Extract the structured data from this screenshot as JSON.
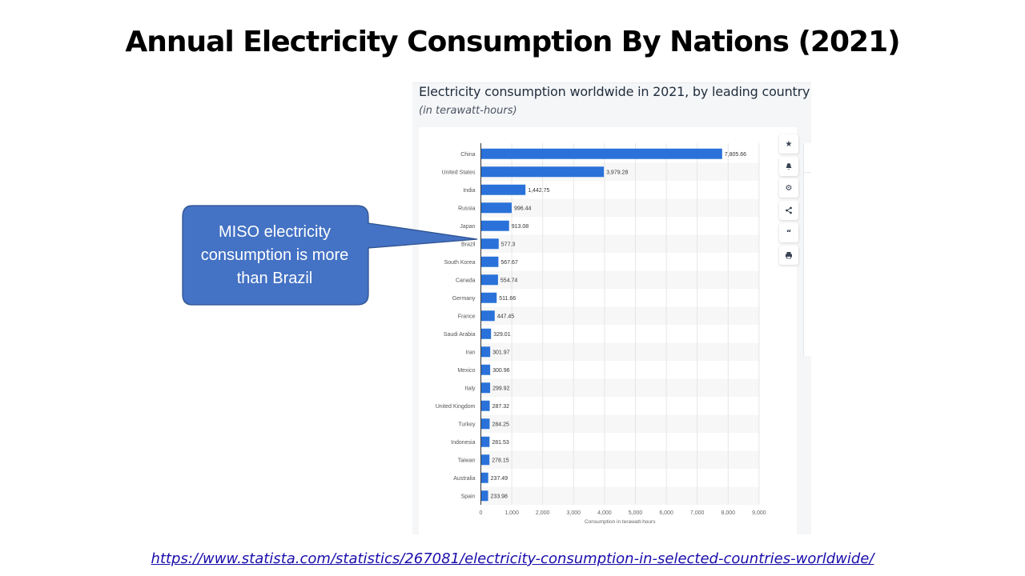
{
  "slide": {
    "title": "Annual Electricity Consumption By Nations (2021)",
    "source_link": "https://www.statista.com/statistics/267081/electricity-consumption-in-selected-countries-worldwide/"
  },
  "callout": {
    "text": "MISO electricity consumption is more than Brazil",
    "fill_color": "#4472c4",
    "border_color": "#2f528f"
  },
  "toolbar": {
    "buttons": [
      "star-icon",
      "bell-icon",
      "gear-icon",
      "share-icon",
      "quote-icon",
      "print-icon"
    ]
  },
  "chart_data": {
    "type": "bar",
    "orientation": "horizontal",
    "title": "Electricity consumption worldwide in 2021, by leading country",
    "subtitle": "(in terawatt-hours)",
    "xlabel": "Consumption in terawatt-hours",
    "xlim": [
      0,
      9000
    ],
    "xticks": [
      "0",
      "1,000",
      "2,000",
      "3,000",
      "4,000",
      "5,000",
      "6,000",
      "7,000",
      "8,000",
      "9,000"
    ],
    "grid": true,
    "bar_color": "#2a72d9",
    "categories": [
      "China",
      "United States",
      "India",
      "Russia",
      "Japan",
      "Brazil",
      "South Korea",
      "Canada",
      "Germany",
      "France",
      "Saudi Arabia",
      "Iran",
      "Mexico",
      "Italy",
      "United Kingdom",
      "Turkey",
      "Indonesia",
      "Taiwan",
      "Australia",
      "Spain"
    ],
    "values": [
      7805.66,
      3979.28,
      1442.75,
      996.44,
      913.08,
      577.3,
      567.67,
      554.74,
      511.66,
      447.45,
      329.01,
      301.97,
      300.96,
      299.92,
      287.32,
      284.25,
      281.53,
      278.15,
      237.49,
      233.98
    ],
    "labels": [
      "7,805.66",
      "3,979.28",
      "1,442.75",
      "996.44",
      "913.08",
      "577.3",
      "567.67",
      "554.74",
      "511.66",
      "447.45",
      "329.01",
      "301.97",
      "300.96",
      "299.92",
      "287.32",
      "284.25",
      "281.53",
      "278.15",
      "237.49",
      "233.98"
    ]
  }
}
